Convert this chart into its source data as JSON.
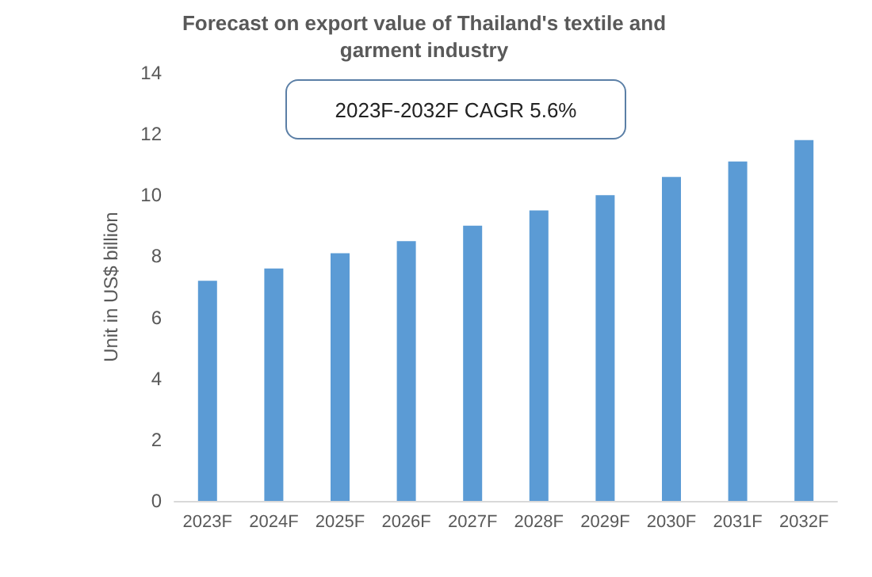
{
  "chart_data": {
    "type": "bar",
    "title": "Forecast on  export value of Thailand's textile and garment industry",
    "ylabel": "Unit in US$ billion",
    "annotations": [
      "2023F-2032F CAGR 5.6%"
    ],
    "categories": [
      "2023F",
      "2024F",
      "2025F",
      "2026F",
      "2027F",
      "2028F",
      "2029F",
      "2030F",
      "2031F",
      "2032F"
    ],
    "values": [
      7.2,
      7.6,
      8.1,
      8.5,
      9.0,
      9.5,
      10.0,
      10.6,
      11.1,
      11.8
    ],
    "color": "#5b9bd5",
    "ylim": [
      0,
      14
    ],
    "yticks": [
      0,
      2,
      4,
      6,
      8,
      10,
      12,
      14
    ],
    "grid": false
  }
}
